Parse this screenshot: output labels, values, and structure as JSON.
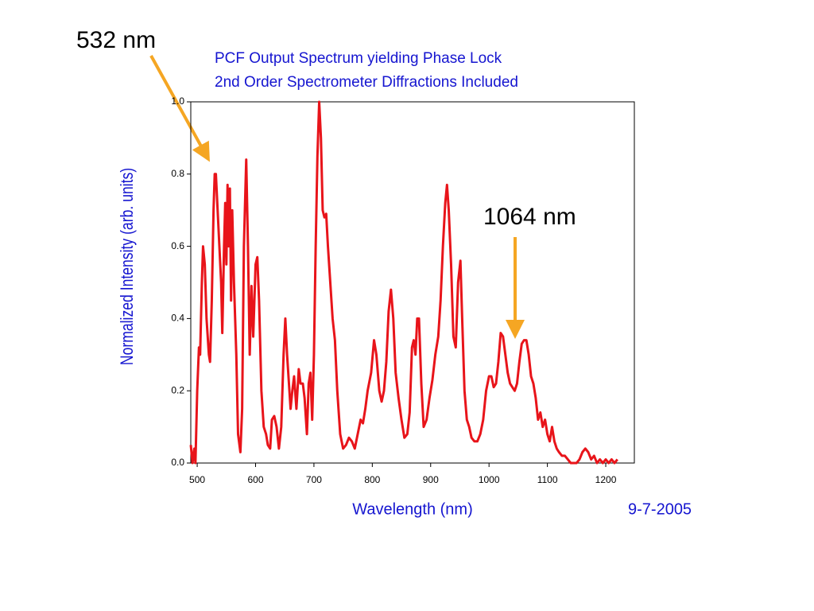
{
  "chart_data": {
    "type": "line",
    "title": "PCF Output Spectrum yielding Phase Lock",
    "subtitle": "2nd Order Spectrometer Diffractions Included",
    "x_label": "Wavelength (nm)",
    "y_label": "Normalized Intensity (arb. units)",
    "annotations": [
      "532 nm",
      "1064 nm",
      "9-7-2005"
    ],
    "color": "#e8141a",
    "xlim": [
      489,
      1249
    ],
    "ylim": [
      0,
      1
    ],
    "xticks": [
      500,
      600,
      700,
      800,
      900,
      1000,
      1100,
      1200
    ],
    "yticks": [
      {
        "value": 0,
        "label": "0.0"
      },
      0.2,
      0.4,
      0.6,
      0.8,
      {
        "value": 1,
        "label": "1.0"
      }
    ],
    "x": [
      489,
      492,
      495,
      497,
      500,
      503,
      505,
      508,
      510,
      513,
      516,
      520,
      522,
      525,
      528,
      530,
      532,
      535,
      538,
      541,
      543,
      546,
      548,
      550,
      552,
      554,
      556,
      558,
      560,
      563,
      567,
      570,
      574,
      577,
      580,
      584,
      587,
      590,
      593,
      596,
      600,
      603,
      606,
      610,
      614,
      618,
      621,
      625,
      628,
      632,
      636,
      640,
      644,
      648,
      651,
      654,
      658,
      660,
      663,
      666,
      670,
      674,
      677,
      681,
      684,
      688,
      691,
      694,
      697,
      700,
      703,
      706,
      709,
      712,
      715,
      718,
      721,
      724,
      728,
      732,
      736,
      740,
      745,
      750,
      755,
      760,
      765,
      770,
      775,
      780,
      784,
      788,
      792,
      798,
      803,
      807,
      812,
      816,
      820,
      824,
      828,
      832,
      836,
      840,
      845,
      850,
      855,
      860,
      864,
      868,
      871,
      874,
      877,
      880,
      884,
      888,
      893,
      898,
      903,
      908,
      913,
      917,
      921,
      925,
      928,
      931,
      935,
      939,
      943,
      947,
      951,
      954,
      958,
      962,
      966,
      970,
      975,
      980,
      985,
      990,
      995,
      1000,
      1004,
      1008,
      1012,
      1016,
      1020,
      1024,
      1028,
      1032,
      1036,
      1040,
      1044,
      1048,
      1052,
      1056,
      1060,
      1064,
      1068,
      1072,
      1076,
      1080,
      1084,
      1088,
      1092,
      1096,
      1100,
      1104,
      1108,
      1112,
      1116,
      1120,
      1125,
      1130,
      1135,
      1140,
      1145,
      1150,
      1155,
      1160,
      1165,
      1170,
      1175,
      1180,
      1185,
      1190,
      1195,
      1200,
      1205,
      1210,
      1215,
      1220
    ],
    "values": [
      0.05,
      0.0,
      0.04,
      0.0,
      0.2,
      0.32,
      0.3,
      0.5,
      0.6,
      0.55,
      0.4,
      0.3,
      0.28,
      0.45,
      0.7,
      0.8,
      0.8,
      0.7,
      0.6,
      0.5,
      0.36,
      0.6,
      0.72,
      0.55,
      0.77,
      0.6,
      0.76,
      0.45,
      0.7,
      0.5,
      0.3,
      0.08,
      0.03,
      0.15,
      0.6,
      0.84,
      0.6,
      0.3,
      0.49,
      0.35,
      0.55,
      0.57,
      0.45,
      0.2,
      0.1,
      0.08,
      0.05,
      0.04,
      0.12,
      0.13,
      0.1,
      0.04,
      0.1,
      0.3,
      0.4,
      0.3,
      0.2,
      0.15,
      0.2,
      0.24,
      0.15,
      0.26,
      0.22,
      0.22,
      0.18,
      0.08,
      0.22,
      0.25,
      0.12,
      0.3,
      0.6,
      0.85,
      1.0,
      0.9,
      0.7,
      0.68,
      0.69,
      0.6,
      0.5,
      0.4,
      0.34,
      0.2,
      0.08,
      0.04,
      0.05,
      0.07,
      0.06,
      0.04,
      0.08,
      0.12,
      0.11,
      0.15,
      0.2,
      0.25,
      0.34,
      0.3,
      0.2,
      0.17,
      0.2,
      0.28,
      0.42,
      0.48,
      0.4,
      0.25,
      0.18,
      0.12,
      0.07,
      0.08,
      0.14,
      0.32,
      0.34,
      0.3,
      0.4,
      0.4,
      0.22,
      0.1,
      0.12,
      0.18,
      0.23,
      0.3,
      0.35,
      0.45,
      0.6,
      0.72,
      0.77,
      0.7,
      0.55,
      0.35,
      0.32,
      0.5,
      0.56,
      0.4,
      0.2,
      0.12,
      0.1,
      0.07,
      0.06,
      0.06,
      0.08,
      0.12,
      0.2,
      0.24,
      0.24,
      0.21,
      0.22,
      0.28,
      0.36,
      0.35,
      0.3,
      0.25,
      0.22,
      0.21,
      0.2,
      0.22,
      0.28,
      0.33,
      0.34,
      0.34,
      0.3,
      0.24,
      0.22,
      0.18,
      0.12,
      0.14,
      0.1,
      0.12,
      0.08,
      0.06,
      0.1,
      0.06,
      0.04,
      0.03,
      0.02,
      0.02,
      0.01,
      0.0,
      0.0,
      0.0,
      0.01,
      0.03,
      0.04,
      0.03,
      0.01,
      0.02,
      0.0,
      0.01,
      0.0,
      0.01,
      0.0,
      0.01,
      0.0,
      0.01
    ]
  }
}
